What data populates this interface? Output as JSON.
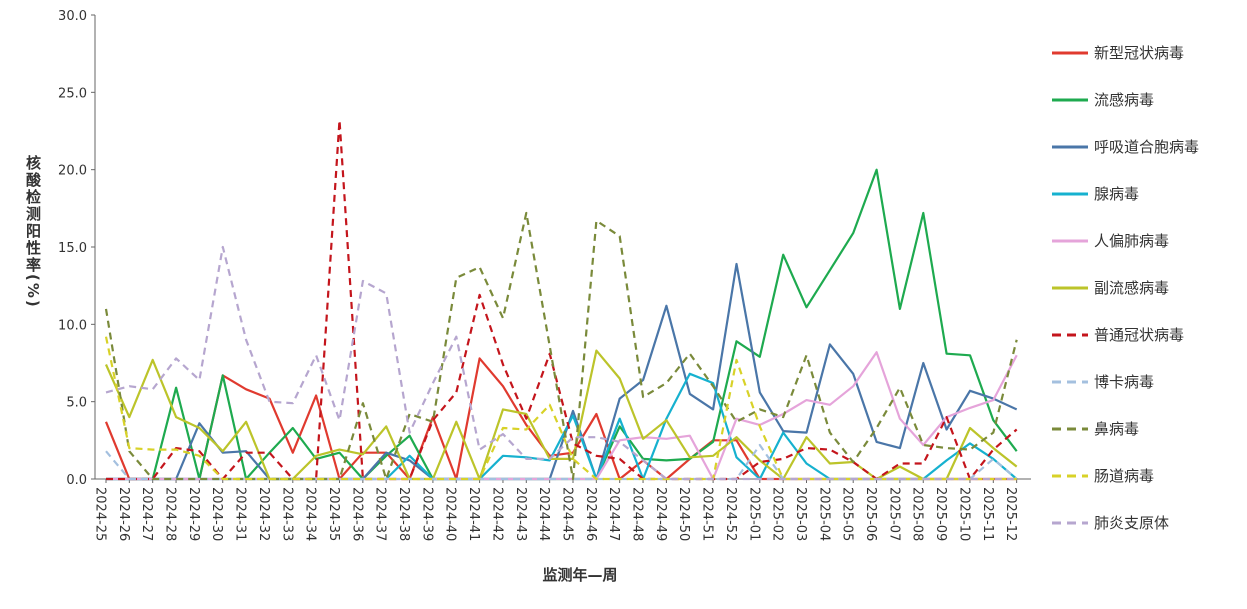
{
  "chart_data": {
    "type": "line",
    "title": "",
    "xlabel": "监测年—周",
    "ylabel": "核酸检测阳性率(%)",
    "ylim": [
      0,
      30
    ],
    "yticks": [
      "0.0",
      "5.0",
      "10.0",
      "15.0",
      "20.0",
      "25.0",
      "30.0"
    ],
    "grid": false,
    "legend_position": "right",
    "categories": [
      "2024-25",
      "2024-26",
      "2024-27",
      "2024-28",
      "2024-29",
      "2024-30",
      "2024-31",
      "2024-32",
      "2024-33",
      "2024-34",
      "2024-35",
      "2024-36",
      "2024-37",
      "2024-38",
      "2024-39",
      "2024-40",
      "2024-41",
      "2024-42",
      "2024-43",
      "2024-44",
      "2024-45",
      "2024-46",
      "2024-47",
      "2024-48",
      "2024-49",
      "2024-50",
      "2024-51",
      "2024-52",
      "2025-01",
      "2025-02",
      "2025-03",
      "2025-04",
      "2025-05",
      "2025-06",
      "2025-07",
      "2025-08",
      "2025-09",
      "2025-10",
      "2025-11",
      "2025-12"
    ],
    "series": [
      {
        "name": "新型冠状病毒",
        "color": "#e03a2f",
        "dash": "solid",
        "values": [
          3.7,
          0,
          0,
          0,
          0,
          6.7,
          5.8,
          5.2,
          1.7,
          5.4,
          0,
          1.7,
          1.7,
          0,
          4.0,
          0,
          7.8,
          6.0,
          3.5,
          1.5,
          1.7,
          4.2,
          0,
          1.2,
          0,
          1.3,
          2.5,
          2.5,
          0,
          0,
          0,
          0,
          0,
          0,
          0,
          0,
          0,
          0,
          0,
          0
        ]
      },
      {
        "name": "流感病毒",
        "color": "#1eaa4f",
        "dash": "solid",
        "values": [
          0,
          0,
          0,
          5.9,
          0,
          6.7,
          0,
          1.7,
          3.3,
          1.3,
          1.7,
          0,
          1.5,
          2.8,
          0,
          0,
          0,
          0,
          0,
          0,
          0,
          0,
          3.4,
          1.3,
          1.2,
          1.3,
          2.4,
          8.9,
          7.9,
          14.5,
          11.1,
          13.5,
          15.9,
          20.0,
          11.0,
          17.2,
          8.1,
          8.0,
          3.8,
          1.8
        ]
      },
      {
        "name": "呼吸道合胞病毒",
        "color": "#4a76a8",
        "dash": "solid",
        "values": [
          0,
          0,
          0,
          0,
          3.6,
          1.7,
          1.8,
          0,
          0,
          0,
          0,
          0,
          1.7,
          1.2,
          0,
          0,
          0,
          0,
          0,
          0,
          4.4,
          0,
          5.2,
          6.4,
          11.2,
          5.5,
          4.5,
          13.9,
          5.6,
          3.1,
          3.0,
          8.7,
          6.8,
          2.4,
          2.0,
          7.5,
          3.2,
          5.7,
          5.2,
          4.5
        ]
      },
      {
        "name": "腺病毒",
        "color": "#16b1cf",
        "dash": "solid",
        "values": [
          0,
          0,
          0,
          0,
          0,
          0,
          0,
          0,
          0,
          0,
          0,
          0,
          0,
          1.5,
          0,
          0,
          0,
          1.5,
          1.4,
          1.2,
          4.1,
          0,
          3.9,
          0,
          3.9,
          6.8,
          6.2,
          1.4,
          0,
          3.0,
          1.0,
          0,
          0,
          0,
          0,
          0,
          1.2,
          2.3,
          1.3,
          0
        ]
      },
      {
        "name": "人偏肺病毒",
        "color": "#e5a4da",
        "dash": "solid",
        "values": [
          0,
          0,
          0,
          0,
          0,
          0,
          0,
          0,
          0,
          0,
          0,
          0,
          0,
          0,
          0,
          0,
          0,
          0,
          0,
          0,
          0,
          0,
          2.5,
          2.7,
          2.6,
          2.8,
          0,
          3.9,
          3.5,
          4.2,
          5.1,
          4.8,
          6.0,
          8.2,
          3.9,
          2.2,
          4.0,
          4.6,
          5.1,
          8.0
        ]
      },
      {
        "name": "副流感病毒",
        "color": "#bcc42a",
        "dash": "solid",
        "values": [
          7.4,
          4.0,
          7.7,
          4.0,
          3.3,
          1.8,
          3.7,
          0,
          0,
          1.5,
          1.9,
          1.6,
          3.4,
          0,
          0,
          3.7,
          0,
          4.5,
          4.2,
          1.3,
          1.3,
          8.3,
          6.5,
          2.6,
          3.8,
          1.4,
          1.5,
          2.7,
          1.2,
          0,
          2.7,
          1.0,
          1.1,
          0,
          0.8,
          0,
          0,
          3.3,
          2.0,
          0.8
        ]
      },
      {
        "name": "普通冠状病毒",
        "color": "#c4151c",
        "dash": "dashed",
        "values": [
          0,
          0,
          0,
          2.0,
          1.8,
          0,
          1.7,
          1.7,
          0,
          0,
          23.2,
          0,
          0,
          0,
          3.8,
          5.6,
          11.9,
          7.4,
          3.9,
          8.1,
          2.3,
          1.5,
          1.3,
          0,
          0,
          0,
          0,
          0,
          1.1,
          1.3,
          2.0,
          1.9,
          1.1,
          0,
          1.0,
          1.0,
          4.0,
          0,
          1.9,
          3.2
        ]
      },
      {
        "name": "博卡病毒",
        "color": "#a4c0df",
        "dash": "dashed",
        "values": [
          1.8,
          0,
          0,
          0,
          0,
          0,
          0,
          0,
          0,
          0,
          0,
          0,
          0,
          0,
          0,
          0,
          0,
          0,
          0,
          0,
          0,
          0,
          0,
          0,
          0,
          0,
          0,
          0,
          2.2,
          0,
          0,
          0,
          0,
          0,
          0,
          0,
          0,
          0,
          1.3,
          0
        ]
      },
      {
        "name": "鼻病毒",
        "color": "#7a8a3a",
        "dash": "dashed",
        "values": [
          11.0,
          1.8,
          0,
          0,
          0,
          0,
          0,
          0,
          0,
          0,
          0,
          4.9,
          0,
          4.2,
          3.7,
          13.0,
          13.7,
          10.4,
          17.2,
          8.6,
          0,
          16.7,
          15.7,
          5.3,
          6.2,
          8.1,
          6.0,
          3.7,
          4.5,
          4.0,
          8.0,
          3.0,
          1.1,
          3.3,
          5.9,
          2.2,
          2.0,
          1.9,
          3.0,
          9.0
        ]
      },
      {
        "name": "肠道病毒",
        "color": "#d8d228",
        "dash": "dashed",
        "values": [
          9.2,
          2.0,
          1.9,
          1.9,
          1.5,
          0,
          0,
          0,
          0,
          0,
          0,
          0,
          0,
          0,
          0,
          0,
          0,
          3.3,
          3.2,
          4.8,
          1.3,
          0,
          0,
          0,
          0,
          0,
          0,
          7.7,
          3.4,
          0,
          0,
          0,
          0,
          0,
          0,
          0,
          0,
          0,
          0,
          0
        ]
      },
      {
        "name": "肺炎支原体",
        "color": "#b6a6cf",
        "dash": "dashed",
        "values": [
          5.6,
          6.0,
          5.8,
          7.8,
          6.4,
          15.0,
          9.0,
          5.0,
          4.9,
          8.0,
          3.8,
          12.8,
          12.0,
          3.0,
          6.2,
          9.2,
          1.9,
          2.9,
          1.3,
          1.3,
          2.7,
          2.7,
          2.4,
          1.2,
          0,
          0,
          0,
          0,
          0,
          0,
          0,
          0,
          0,
          0,
          0,
          0,
          0,
          0,
          0,
          0
        ]
      }
    ]
  }
}
